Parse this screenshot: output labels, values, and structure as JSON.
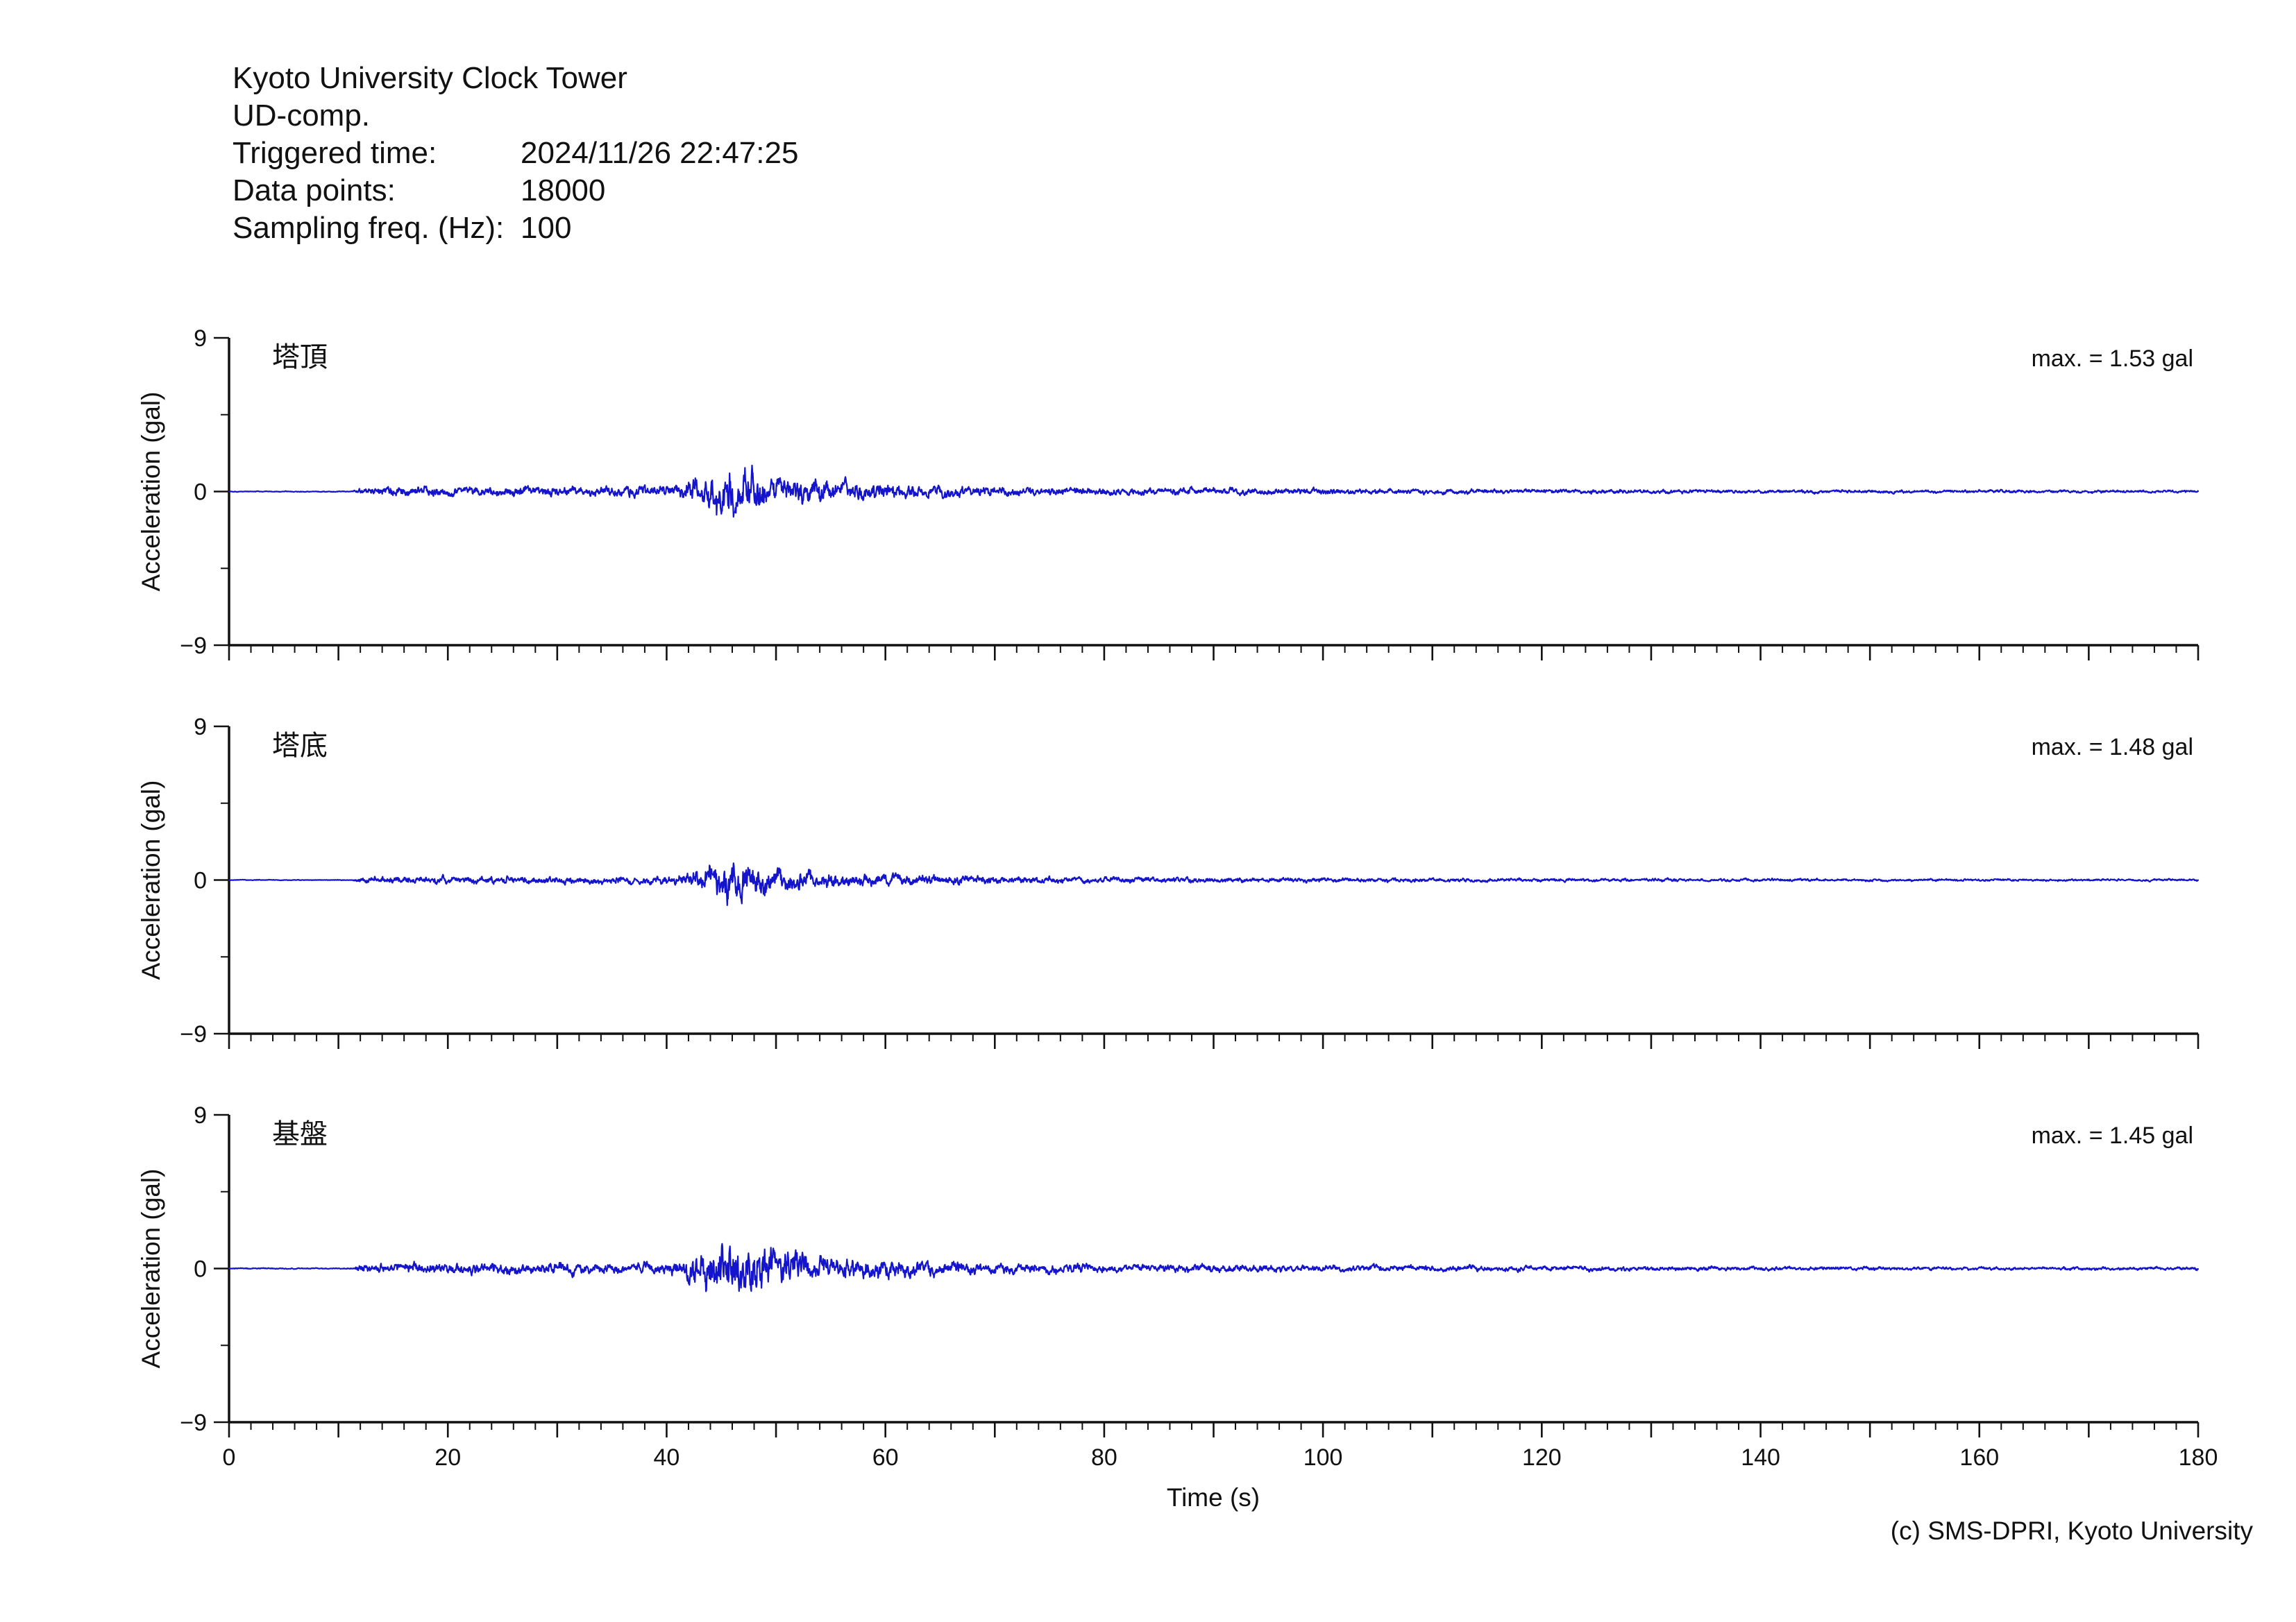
{
  "header": {
    "title": "Kyoto University Clock Tower",
    "component": "UD-comp.",
    "rows": [
      {
        "label": "Triggered time:",
        "value": "2024/11/26 22:47:25"
      },
      {
        "label": "Data points:",
        "value": "18000"
      },
      {
        "label": "Sampling freq. (Hz):",
        "value": "100"
      }
    ]
  },
  "footer": {
    "credit": "(c) SMS-DPRI, Kyoto University"
  },
  "chart_data": {
    "type": "line",
    "kind": "seismic-acceleration-waveforms",
    "xlabel": "Time (s)",
    "ylabel": "Acceleration (gal)",
    "xlim": [
      0,
      180
    ],
    "ylim": [
      -9,
      9
    ],
    "xticks_labeled": [
      0,
      20,
      40,
      60,
      80,
      100,
      120,
      140,
      160,
      180
    ],
    "xtick_mid_step": 10,
    "xtick_minor_step": 2,
    "ytick_labels": [
      "9",
      "0",
      "−9"
    ],
    "yticks_labeled": [
      9,
      0,
      -9
    ],
    "ytick_minor": [
      4.5,
      -4.5
    ],
    "grid": false,
    "legend": "none",
    "line_color": "#1414cc",
    "sampling_freq_hz": 100,
    "n_points": 18000,
    "duration_s": 180,
    "series": [
      {
        "label": "塔頂",
        "max_gal": 1.53,
        "max_label": "max. = 1.53 gal",
        "seed": 101,
        "envelope": [
          [
            0,
            0.025
          ],
          [
            11.3,
            0.025
          ],
          [
            12,
            0.24
          ],
          [
            16,
            0.3
          ],
          [
            21,
            0.27
          ],
          [
            27,
            0.31
          ],
          [
            33,
            0.29
          ],
          [
            39,
            0.33
          ],
          [
            41.5,
            0.45
          ],
          [
            43,
            0.9
          ],
          [
            44.5,
            1.35
          ],
          [
            45.5,
            1.53
          ],
          [
            46.5,
            1.25
          ],
          [
            47.5,
            1.4
          ],
          [
            49,
            1.05
          ],
          [
            51,
            0.85
          ],
          [
            53,
            0.75
          ],
          [
            55.5,
            0.62
          ],
          [
            58,
            0.52
          ],
          [
            61,
            0.46
          ],
          [
            64,
            0.4
          ],
          [
            68,
            0.32
          ],
          [
            72,
            0.27
          ],
          [
            76,
            0.24
          ],
          [
            80,
            0.23
          ],
          [
            84,
            0.2
          ],
          [
            88,
            0.22
          ],
          [
            93,
            0.19
          ],
          [
            98,
            0.18
          ],
          [
            104,
            0.16
          ],
          [
            110,
            0.15
          ],
          [
            118,
            0.13
          ],
          [
            126,
            0.12
          ],
          [
            134,
            0.11
          ],
          [
            142,
            0.1
          ],
          [
            152,
            0.09
          ],
          [
            162,
            0.09
          ],
          [
            172,
            0.08
          ],
          [
            180,
            0.08
          ]
        ]
      },
      {
        "label": "塔底",
        "max_gal": 1.48,
        "max_label": "max. = 1.48 gal",
        "seed": 202,
        "envelope": [
          [
            0,
            0.025
          ],
          [
            11.3,
            0.025
          ],
          [
            12,
            0.22
          ],
          [
            16,
            0.28
          ],
          [
            21,
            0.26
          ],
          [
            27,
            0.3
          ],
          [
            33,
            0.28
          ],
          [
            39,
            0.32
          ],
          [
            41.5,
            0.44
          ],
          [
            43,
            0.88
          ],
          [
            44.5,
            1.32
          ],
          [
            45.5,
            1.48
          ],
          [
            46.5,
            1.22
          ],
          [
            47.5,
            1.36
          ],
          [
            49,
            1.02
          ],
          [
            51,
            0.83
          ],
          [
            53,
            0.73
          ],
          [
            55.5,
            0.6
          ],
          [
            58,
            0.51
          ],
          [
            61,
            0.45
          ],
          [
            64,
            0.39
          ],
          [
            68,
            0.31
          ],
          [
            72,
            0.27
          ],
          [
            76,
            0.24
          ],
          [
            80,
            0.22
          ],
          [
            84,
            0.2
          ],
          [
            88,
            0.21
          ],
          [
            93,
            0.19
          ],
          [
            98,
            0.17
          ],
          [
            104,
            0.16
          ],
          [
            110,
            0.15
          ],
          [
            118,
            0.13
          ],
          [
            126,
            0.12
          ],
          [
            134,
            0.11
          ],
          [
            142,
            0.1
          ],
          [
            152,
            0.09
          ],
          [
            162,
            0.09
          ],
          [
            172,
            0.08
          ],
          [
            180,
            0.08
          ]
        ]
      },
      {
        "label": "基盤",
        "max_gal": 1.45,
        "max_label": "max. = 1.45 gal",
        "seed": 303,
        "envelope": [
          [
            0,
            0.025
          ],
          [
            11.3,
            0.025
          ],
          [
            12,
            0.22
          ],
          [
            16,
            0.28
          ],
          [
            21,
            0.26
          ],
          [
            27,
            0.29
          ],
          [
            33,
            0.28
          ],
          [
            39,
            0.31
          ],
          [
            41.5,
            0.43
          ],
          [
            43,
            0.86
          ],
          [
            44.5,
            1.3
          ],
          [
            45.5,
            1.45
          ],
          [
            46.5,
            1.2
          ],
          [
            47.5,
            1.33
          ],
          [
            49,
            1.0
          ],
          [
            51,
            0.82
          ],
          [
            53,
            0.72
          ],
          [
            55.5,
            0.59
          ],
          [
            58,
            0.5
          ],
          [
            61,
            0.44
          ],
          [
            64,
            0.38
          ],
          [
            68,
            0.31
          ],
          [
            72,
            0.26
          ],
          [
            76,
            0.23
          ],
          [
            80,
            0.22
          ],
          [
            84,
            0.19
          ],
          [
            88,
            0.21
          ],
          [
            93,
            0.18
          ],
          [
            98,
            0.17
          ],
          [
            104,
            0.15
          ],
          [
            110,
            0.14
          ],
          [
            118,
            0.13
          ],
          [
            126,
            0.12
          ],
          [
            134,
            0.11
          ],
          [
            142,
            0.1
          ],
          [
            152,
            0.09
          ],
          [
            162,
            0.08
          ],
          [
            172,
            0.08
          ],
          [
            180,
            0.08
          ]
        ]
      }
    ]
  }
}
